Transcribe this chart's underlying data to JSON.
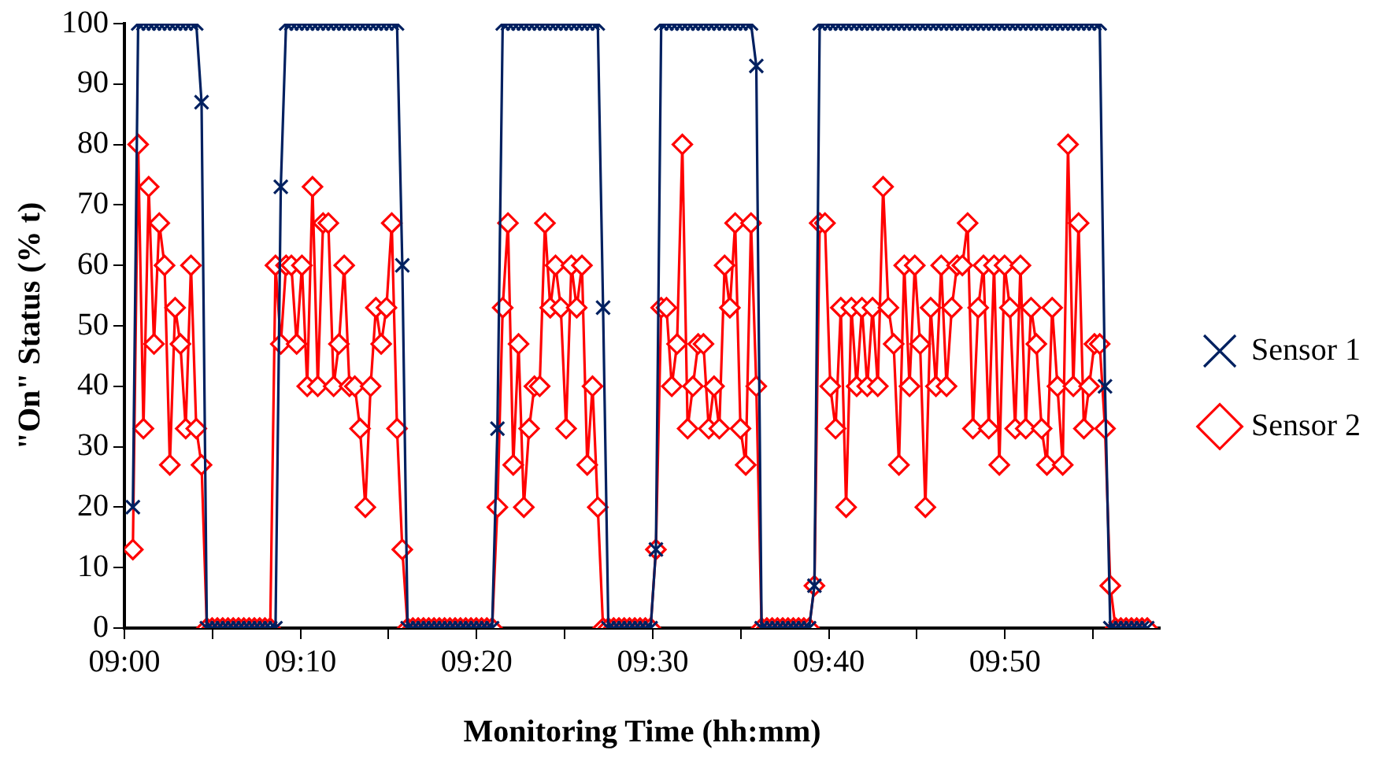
{
  "chart_data": {
    "type": "line",
    "xlabel": "Monitoring Time (hh:mm)",
    "ylabel": "\"On\" Status (% t)",
    "x": [
      9.008,
      9.013,
      9.018,
      9.023,
      9.028,
      9.033,
      9.038,
      9.043,
      9.048,
      9.053,
      9.058,
      9.063,
      9.068,
      9.073,
      9.078,
      9.083,
      9.088,
      9.093,
      9.098,
      9.103,
      9.108,
      9.113,
      9.118,
      9.123,
      9.128,
      9.133,
      9.138,
      9.143,
      9.148,
      9.153,
      9.158,
      9.163,
      9.168,
      9.173,
      9.178,
      9.183,
      9.188,
      9.193,
      9.198,
      9.203,
      9.208,
      9.213,
      9.218,
      9.223,
      9.228,
      9.233,
      9.238,
      9.243,
      9.248,
      9.253,
      9.258,
      9.263,
      9.268,
      9.273,
      9.278,
      9.283,
      9.288,
      9.293,
      9.298,
      9.303,
      9.308,
      9.313,
      9.318,
      9.323,
      9.328,
      9.333,
      9.338,
      9.343,
      9.348,
      9.353,
      9.358,
      9.363,
      9.368,
      9.373,
      9.378,
      9.383,
      9.388,
      9.393,
      9.398,
      9.403,
      9.408,
      9.413,
      9.418,
      9.423,
      9.428,
      9.433,
      9.438,
      9.443,
      9.448,
      9.453,
      9.458,
      9.463,
      9.468,
      9.473,
      9.478,
      9.483,
      9.488,
      9.493,
      9.498,
      9.503,
      9.508,
      9.513,
      9.518,
      9.523,
      9.528,
      9.533,
      9.538,
      9.543,
      9.548,
      9.553,
      9.558,
      9.563,
      9.568,
      9.573,
      9.578,
      9.583,
      9.588,
      9.593,
      9.598,
      9.603,
      9.608,
      9.613,
      9.618,
      9.623,
      9.628,
      9.633,
      9.638,
      9.643,
      9.648,
      9.653,
      9.658,
      9.663,
      9.668,
      9.673,
      9.678,
      9.683,
      9.688,
      9.693,
      9.698,
      9.703,
      9.708,
      9.713,
      9.718,
      9.723,
      9.728,
      9.733,
      9.738,
      9.743,
      9.748,
      9.753,
      9.758,
      9.763,
      9.768,
      9.773,
      9.778,
      9.783,
      9.788,
      9.793,
      9.798,
      9.803,
      9.808,
      9.813,
      9.818,
      9.823,
      9.828,
      9.833,
      9.838,
      9.843,
      9.848,
      9.853,
      9.858,
      9.863,
      9.868,
      9.873,
      9.878,
      9.883,
      9.888,
      9.893,
      9.898,
      9.903,
      9.908,
      9.913,
      9.918,
      9.923,
      9.928,
      9.933,
      9.938,
      9.943,
      9.948,
      9.953,
      9.958,
      9.963,
      9.968
    ],
    "series": [
      {
        "name": "Sensor 1",
        "color": "#002060",
        "marker": "cross",
        "values": [
          20,
          100,
          100,
          100,
          100,
          100,
          100,
          100,
          100,
          100,
          100,
          100,
          100,
          87,
          0,
          0,
          0,
          0,
          0,
          0,
          0,
          0,
          0,
          0,
          0,
          0,
          0,
          0,
          73,
          100,
          100,
          100,
          100,
          100,
          100,
          100,
          100,
          100,
          100,
          100,
          100,
          100,
          100,
          100,
          100,
          100,
          100,
          100,
          100,
          100,
          100,
          60,
          0,
          0,
          0,
          0,
          0,
          0,
          0,
          0,
          0,
          0,
          0,
          0,
          0,
          0,
          0,
          0,
          0,
          33,
          100,
          100,
          100,
          100,
          100,
          100,
          100,
          100,
          100,
          100,
          100,
          100,
          100,
          100,
          100,
          100,
          100,
          100,
          100,
          53,
          0,
          0,
          0,
          0,
          0,
          0,
          0,
          0,
          0,
          13,
          100,
          100,
          100,
          100,
          100,
          100,
          100,
          100,
          100,
          100,
          100,
          100,
          100,
          100,
          100,
          100,
          100,
          100,
          93,
          0,
          0,
          0,
          0,
          0,
          0,
          0,
          0,
          0,
          0,
          7,
          100,
          100,
          100,
          100,
          100,
          100,
          100,
          100,
          100,
          100,
          100,
          100,
          100,
          100,
          100,
          100,
          100,
          100,
          100,
          100,
          100,
          100,
          100,
          100,
          100,
          100,
          100,
          100,
          100,
          100,
          100,
          100,
          100,
          100,
          100,
          100,
          100,
          100,
          100,
          100,
          100,
          100,
          100,
          100,
          100,
          100,
          100,
          100,
          100,
          100,
          100,
          100,
          100,
          100,
          40,
          0,
          0,
          0,
          0,
          0,
          0,
          0,
          0
        ]
      },
      {
        "name": "Sensor 2",
        "color": "#ff0000",
        "marker": "diamond",
        "values": [
          13,
          80,
          33,
          73,
          47,
          67,
          60,
          27,
          53,
          47,
          33,
          60,
          33,
          27,
          0,
          0,
          0,
          0,
          0,
          0,
          0,
          0,
          0,
          0,
          0,
          0,
          0,
          60,
          47,
          60,
          60,
          47,
          60,
          40,
          73,
          40,
          67,
          67,
          40,
          47,
          60,
          40,
          40,
          33,
          20,
          40,
          53,
          47,
          53,
          67,
          33,
          13,
          0,
          0,
          0,
          0,
          0,
          0,
          0,
          0,
          0,
          0,
          0,
          0,
          0,
          0,
          0,
          0,
          0,
          20,
          53,
          67,
          27,
          47,
          20,
          33,
          40,
          40,
          67,
          53,
          60,
          53,
          33,
          60,
          53,
          60,
          27,
          40,
          20,
          0,
          0,
          0,
          0,
          0,
          0,
          0,
          0,
          0,
          0,
          13,
          53,
          53,
          40,
          47,
          80,
          33,
          40,
          47,
          47,
          33,
          40,
          33,
          60,
          53,
          67,
          33,
          27,
          67,
          40,
          0,
          0,
          0,
          0,
          0,
          0,
          0,
          0,
          0,
          0,
          7,
          67,
          67,
          40,
          33,
          53,
          20,
          53,
          40,
          53,
          40,
          53,
          40,
          73,
          53,
          47,
          27,
          60,
          40,
          60,
          47,
          20,
          53,
          40,
          60,
          40,
          53,
          60,
          60,
          67,
          33,
          53,
          60,
          33,
          60,
          27,
          60,
          53,
          33,
          60,
          33,
          53,
          47,
          33,
          27,
          53,
          40,
          27,
          80,
          40,
          67,
          33,
          40,
          47,
          47,
          33,
          7,
          0,
          0,
          0,
          0,
          0,
          0,
          0
        ]
      }
    ],
    "xlim": [
      9,
      9.98
    ],
    "xticks": [
      {
        "value": 9,
        "label": "09:00"
      },
      {
        "value": 9.0833,
        "label": null
      },
      {
        "value": 9.1667,
        "label": "09:10"
      },
      {
        "value": 9.25,
        "label": null
      },
      {
        "value": 9.3333,
        "label": "09:20"
      },
      {
        "value": 9.4167,
        "label": null
      },
      {
        "value": 9.5,
        "label": "09:30"
      },
      {
        "value": 9.5833,
        "label": null
      },
      {
        "value": 9.6667,
        "label": "09:40"
      },
      {
        "value": 9.75,
        "label": null
      },
      {
        "value": 9.8333,
        "label": "09:50"
      },
      {
        "value": 9.9167,
        "label": null
      }
    ],
    "ylim": [
      0,
      100
    ],
    "yticks": [
      0,
      10,
      20,
      30,
      40,
      50,
      60,
      70,
      80,
      90,
      100
    ],
    "grid": false,
    "legend": "right",
    "line_style": "solid"
  }
}
